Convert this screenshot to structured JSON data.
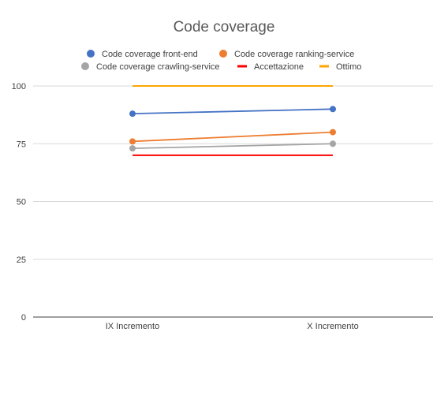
{
  "chart_data": {
    "type": "line",
    "title": "Code coverage",
    "xlabel": "",
    "ylabel": "",
    "categories": [
      "IX Incremento",
      "X Incremento"
    ],
    "ylim": [
      0,
      100
    ],
    "yticks": [
      0,
      25,
      50,
      75,
      100
    ],
    "grid": true,
    "legend_position": "top",
    "series": [
      {
        "name": "Code coverage front-end",
        "values": [
          88,
          90
        ],
        "color": "#4472C4",
        "marker": "circle"
      },
      {
        "name": "Code coverage ranking-service",
        "values": [
          76,
          80
        ],
        "color": "#ED7D31",
        "marker": "circle"
      },
      {
        "name": "Code coverage crawling-service",
        "values": [
          73,
          75
        ],
        "color": "#A5A5A5",
        "marker": "circle"
      },
      {
        "name": "Accettazione",
        "values": [
          70,
          70
        ],
        "color": "#FF0000",
        "marker": "none"
      },
      {
        "name": "Ottimo",
        "values": [
          100,
          100
        ],
        "color": "#FFA500",
        "marker": "none"
      }
    ]
  }
}
